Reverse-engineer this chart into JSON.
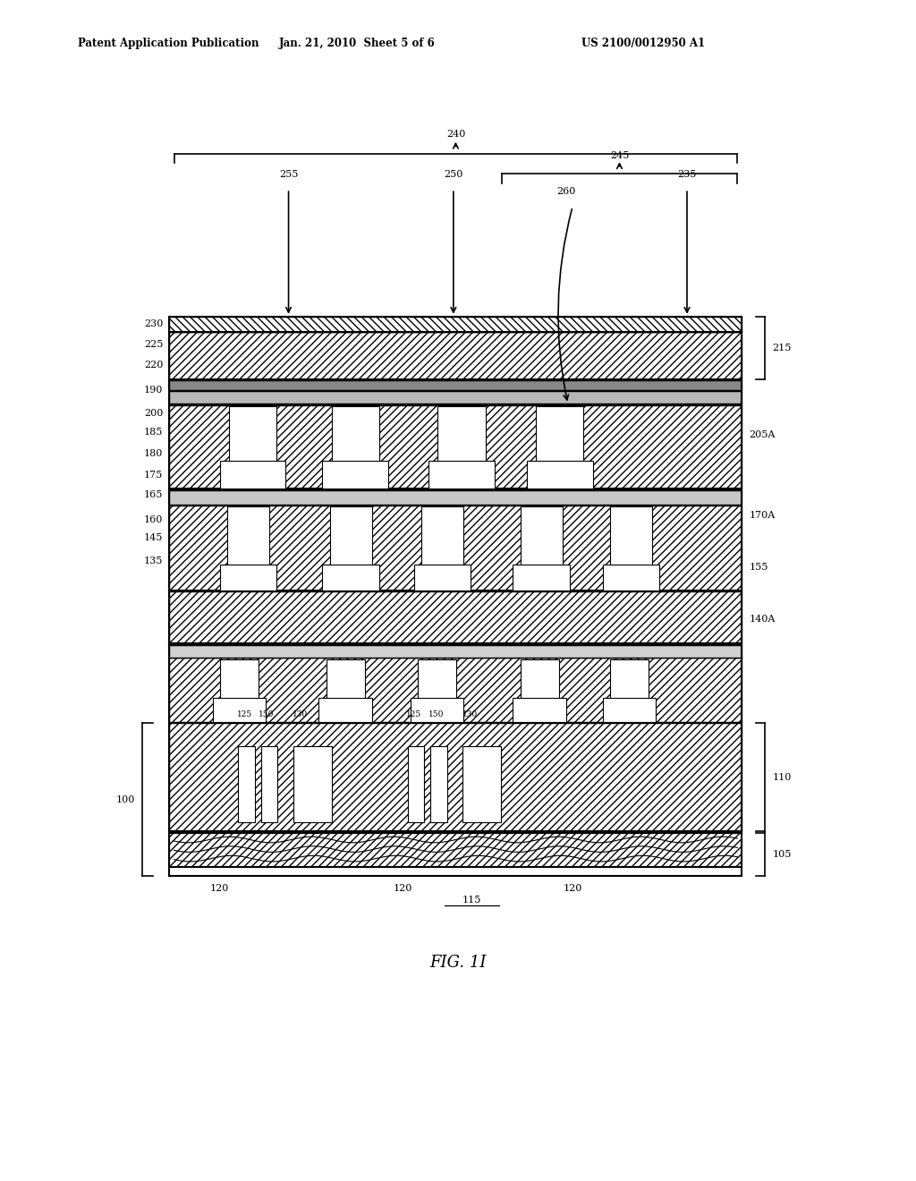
{
  "header_left": "Patent Application Publication",
  "header_mid": "Jan. 21, 2010  Sheet 5 of 6",
  "header_right": "US 2100/0012950 A1",
  "fig_label": "FIG. 1I",
  "bg": "#ffffff",
  "lc": "#000000",
  "DL": 0.185,
  "DR": 0.81,
  "DT": 0.74,
  "DB": 0.255
}
